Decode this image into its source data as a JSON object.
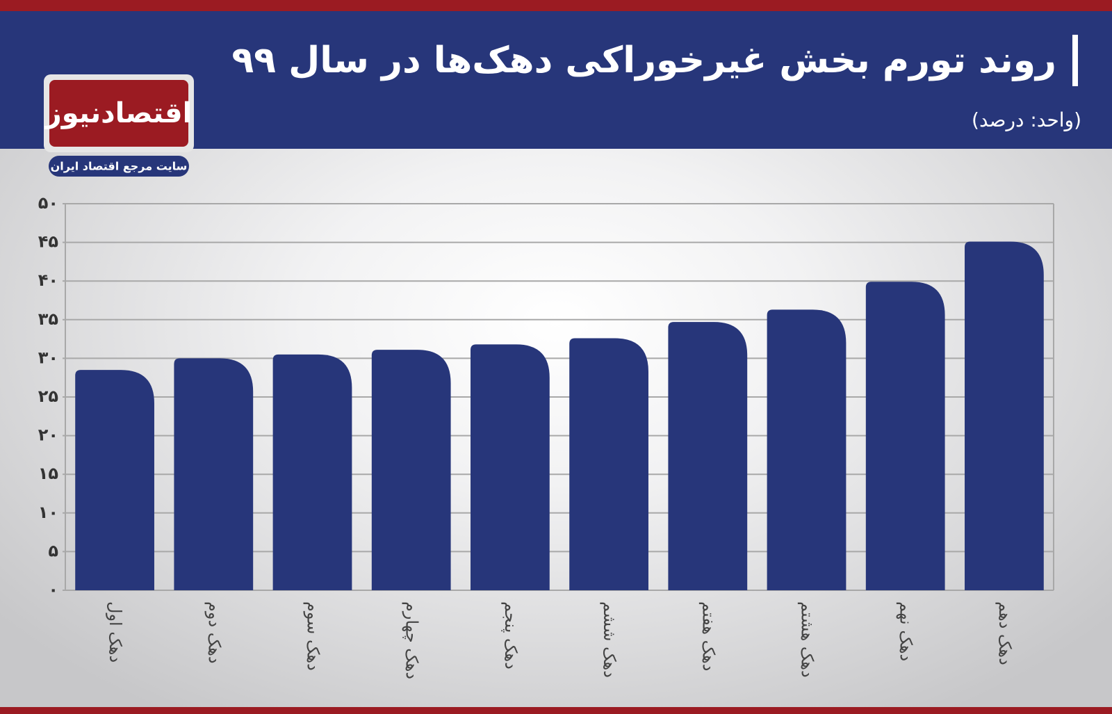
{
  "chart_data": {
    "type": "bar",
    "title": "روند تورم بخش غیرخوراکی دهک‌ها در سال ۹۹",
    "subtitle": "(واحد: درصد)",
    "categories": [
      "دهک اول",
      "دهک دوم",
      "دهک سوم",
      "دهک چهارم",
      "دهک پنجم",
      "دهک ششم",
      "دهک هفتم",
      "دهک هشتم",
      "دهک نهم",
      "دهک دهم"
    ],
    "values": [
      28.5,
      30.0,
      30.5,
      31.1,
      31.8,
      32.6,
      34.7,
      36.3,
      39.9,
      45.1
    ],
    "color": "#27367a",
    "ylim": [
      0,
      50
    ],
    "yticks": [
      {
        "value": 0,
        "label": "۰"
      },
      {
        "value": 5,
        "label": "۵"
      },
      {
        "value": 10,
        "label": "۱۰"
      },
      {
        "value": 15,
        "label": "۱۵"
      },
      {
        "value": 20,
        "label": "۲۰"
      },
      {
        "value": 25,
        "label": "۲۵"
      },
      {
        "value": 30,
        "label": "۳۰"
      },
      {
        "value": 35,
        "label": "۳۵"
      },
      {
        "value": 40,
        "label": "۴۰"
      },
      {
        "value": 45,
        "label": "۴۵"
      },
      {
        "value": 50,
        "label": "۵۰"
      }
    ],
    "grid": true
  },
  "logo": {
    "name": "اقتصادنیوز",
    "tagline": "سایت مرجع اقتصاد ایران"
  }
}
